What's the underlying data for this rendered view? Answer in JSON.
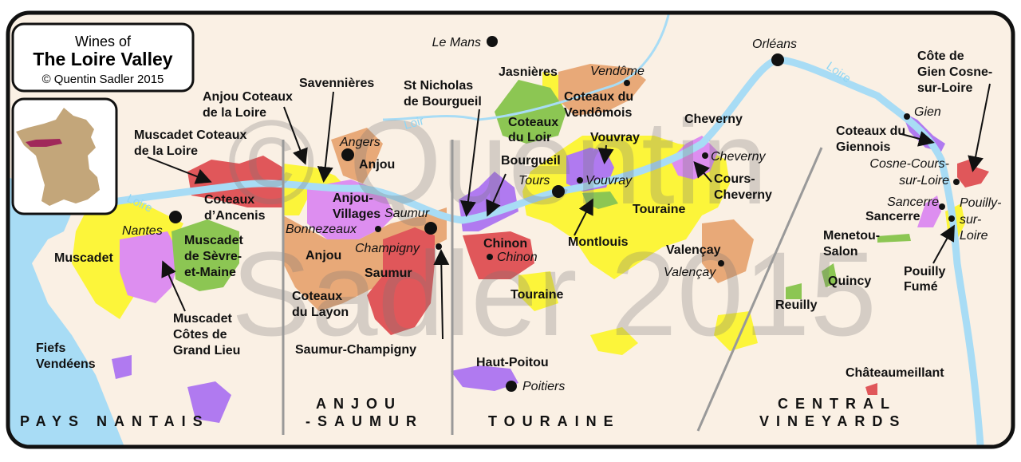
{
  "title_box": {
    "line1": "Wines of",
    "line2": "The Loire Valley",
    "line3": "© Quentin Sadler 2015"
  },
  "watermark": {
    "line1": "© Quentin",
    "line2": "Sadler 2015"
  },
  "colors": {
    "background": "#faf0e4",
    "water": "#a8dcf5",
    "yellow": "#fcf53a",
    "red": "#e0575a",
    "green": "#8cc653",
    "purple": "#b07af0",
    "pink": "#dd8ef0",
    "tan": "#e8a978",
    "inset_france": "#c3a67a",
    "inset_loire": "#a0285a"
  },
  "rivers": {
    "loire_1": "Loire",
    "loire_2": "Loire",
    "loir": "Loir"
  },
  "towns": {
    "le_mans": "Le Mans",
    "vendome": "Vendôme",
    "orleans": "Orléans",
    "gien": "Gien",
    "cosne_1": "Cosne-Cours-",
    "cosne_2": "sur-Loire",
    "sancerre": "Sancerre",
    "pouilly_1": "Pouilly-",
    "pouilly_2": "sur-",
    "pouilly_3": "Loire",
    "cheverny": "Cheverny",
    "vouvray": "Vouvray",
    "tours": "Tours",
    "valencay": "Valençay",
    "chinon": "Chinon",
    "poitiers": "Poitiers",
    "angers": "Angers",
    "saumur": "Saumur",
    "bonnezeaux": "Bonnezeaux",
    "champigny": "Champigny",
    "nantes": "Nantes"
  },
  "appellations": {
    "jasnieres": "Jasnières",
    "vendomois_1": "Coteaux du",
    "vendomois_2": "Vendômois",
    "cote_gien_1": "Côte de",
    "cote_gien_2": "Gien Cosne-",
    "cote_gien_3": "sur-Loire",
    "giennois_1": "Coteaux du",
    "giennois_2": "Giennois",
    "sancerre": "Sancerre",
    "menetou_1": "Menetou-",
    "menetou_2": "Salon",
    "quincy": "Quincy",
    "reuilly": "Reuilly",
    "pouilly_fume_1": "Pouilly",
    "pouilly_fume_2": "Fumé",
    "chateaumeillant": "Châteaumeillant",
    "cheverny": "Cheverny",
    "cours_cheverny_1": "Cours-",
    "cours_cheverny_2": "Cheverny",
    "vouvray": "Vouvray",
    "touraine": "Touraine",
    "montlouis": "Montlouis",
    "valencay": "Valençay",
    "bourgueil": "Bourgueil",
    "coteaux_loir_1": "Coteaux",
    "coteaux_loir_2": "du Loir",
    "st_nicholas_1": "St Nicholas",
    "st_nicholas_2": "de Bourgueil",
    "chinon": "Chinon",
    "touraine_south": "Touraine",
    "haut_poitou": "Haut-Poitou",
    "savennieres": "Savennières",
    "anjou_coteaux_1": "Anjou Coteaux",
    "anjou_coteaux_2": "de la Loire",
    "anjou_north": "Anjou",
    "anjou_villages_1": "Anjou-",
    "anjou_villages_2": "Villages",
    "anjou_south": "Anjou",
    "saumur": "Saumur",
    "layon_1": "Coteaux",
    "layon_2": "du Layon",
    "saumur_champigny": "Saumur-Champigny",
    "muscadet_coteaux_1": "Muscadet Coteaux",
    "muscadet_coteaux_2": "de la Loire",
    "ancenis_1": "Coteaux",
    "ancenis_2": "d’Ancenis",
    "sevre_1": "Muscadet",
    "sevre_2": "de Sèvre-",
    "sevre_3": "et-Maine",
    "muscadet": "Muscadet",
    "grand_lieu_1": "Muscadet",
    "grand_lieu_2": "Côtes de",
    "grand_lieu_3": "Grand Lieu",
    "fiefs_1": "Fiefs",
    "fiefs_2": "Vendéens"
  },
  "regions": {
    "pays_nantais": "PAYS NANTAIS",
    "anjou_1": "ANJOU",
    "anjou_2": "-SAUMUR",
    "touraine": "TOURAINE",
    "central_1": "CENTRAL",
    "central_2": "VINEYARDS"
  }
}
